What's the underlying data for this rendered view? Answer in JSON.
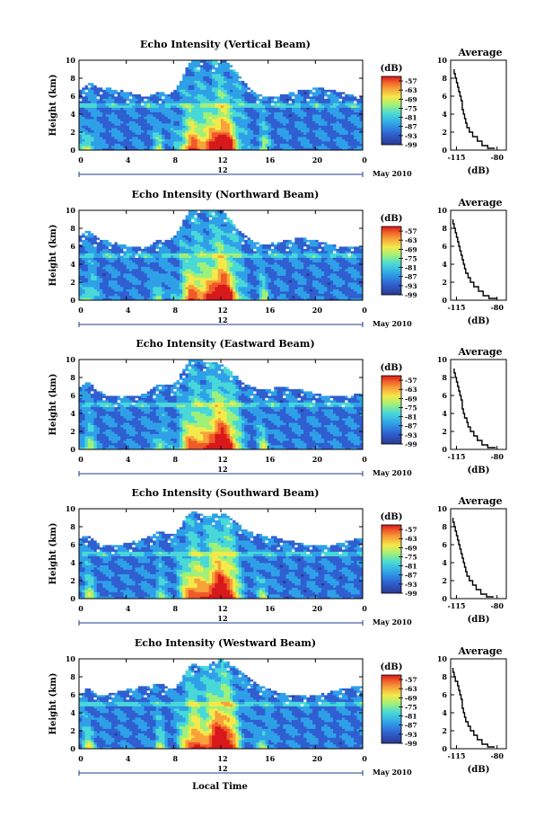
{
  "chart_data": {
    "type": "heatmap",
    "figure_xlabel": "Local Time",
    "date_label": "May 2010",
    "day_marker_label": "12",
    "panels": [
      {
        "title": "Echo Intensity (Vertical Beam)",
        "ylabel": "Height (km)",
        "x_ticks": [
          "0",
          "4",
          "8",
          "12",
          "16",
          "20",
          "0"
        ],
        "y_ticks": [
          "0",
          "2",
          "4",
          "6",
          "8",
          "10"
        ],
        "xlim": [
          0,
          24
        ],
        "ylim": [
          0,
          10
        ],
        "colorbar": {
          "label": "(dB)",
          "ticks": [
            "-57",
            "-63",
            "-69",
            "-75",
            "-81",
            "-87",
            "-93",
            "-99"
          ],
          "range": [
            -99,
            -54
          ]
        },
        "average": {
          "title": "Average",
          "x_ticks": [
            "-115",
            "-80"
          ],
          "xlabel": "(dB)",
          "y_ticks": [
            "0",
            "2",
            "4",
            "6",
            "8",
            "10"
          ],
          "xlim": [
            -120,
            -72
          ],
          "ylim": [
            0,
            10
          ],
          "profile": {
            "height": [
              0.2,
              0.5,
              1,
              1.5,
              2,
              2.5,
              3,
              3.5,
              4,
              4.5,
              5,
              5.5,
              6,
              6.5,
              7,
              7.5,
              8,
              8.5,
              9
            ],
            "db": [
              -82,
              -88,
              -93,
              -97,
              -101,
              -104,
              -106,
              -107,
              -108,
              -109,
              -110,
              -110,
              -111,
              -112,
              -113,
              -114,
              -115,
              -116,
              -117
            ]
          }
        }
      },
      {
        "title": "Echo Intensity (Northward Beam)",
        "ylabel": "Height (km)",
        "x_ticks": [
          "0",
          "4",
          "8",
          "12",
          "16",
          "20",
          "0"
        ],
        "y_ticks": [
          "0",
          "2",
          "4",
          "6",
          "8",
          "10"
        ],
        "xlim": [
          0,
          24
        ],
        "ylim": [
          0,
          10
        ],
        "colorbar": {
          "label": "(dB)",
          "ticks": [
            "-57",
            "-63",
            "-69",
            "-75",
            "-81",
            "-87",
            "-93",
            "-99"
          ],
          "range": [
            -99,
            -54
          ]
        },
        "average": {
          "title": "Average",
          "x_ticks": [
            "-115",
            "-80"
          ],
          "xlabel": "(dB)",
          "y_ticks": [
            "0",
            "2",
            "4",
            "6",
            "8",
            "10"
          ],
          "xlim": [
            -120,
            -72
          ],
          "ylim": [
            0,
            10
          ],
          "profile": {
            "height": [
              0.2,
              0.5,
              1,
              1.5,
              2,
              2.5,
              3,
              3.5,
              4,
              4.5,
              5,
              5.5,
              6,
              6.5,
              7,
              7.5,
              8,
              8.5,
              9
            ],
            "db": [
              -80,
              -87,
              -92,
              -96,
              -100,
              -103,
              -105,
              -107,
              -108,
              -109,
              -110,
              -111,
              -112,
              -113,
              -114,
              -115,
              -116,
              -117,
              -118
            ]
          }
        }
      },
      {
        "title": "Echo Intensity (Eastward Beam)",
        "ylabel": "Height (km)",
        "x_ticks": [
          "0",
          "4",
          "8",
          "12",
          "16",
          "20",
          "0"
        ],
        "y_ticks": [
          "0",
          "2",
          "4",
          "6",
          "8",
          "10"
        ],
        "xlim": [
          0,
          24
        ],
        "ylim": [
          0,
          10
        ],
        "colorbar": {
          "label": "(dB)",
          "ticks": [
            "-57",
            "-63",
            "-69",
            "-75",
            "-81",
            "-87",
            "-93",
            "-99"
          ],
          "range": [
            -99,
            -54
          ]
        },
        "average": {
          "title": "Average",
          "x_ticks": [
            "-115",
            "-80"
          ],
          "xlabel": "(dB)",
          "y_ticks": [
            "0",
            "2",
            "4",
            "6",
            "8",
            "10"
          ],
          "xlim": [
            -120,
            -72
          ],
          "ylim": [
            0,
            10
          ],
          "profile": {
            "height": [
              0.2,
              0.5,
              1,
              1.5,
              2,
              2.5,
              3,
              3.5,
              4,
              4.5,
              5,
              5.5,
              6,
              6.5,
              7,
              7.5,
              8,
              8.5,
              9
            ],
            "db": [
              -81,
              -88,
              -93,
              -97,
              -100,
              -103,
              -105,
              -106,
              -108,
              -109,
              -110,
              -110,
              -111,
              -112,
              -113,
              -114,
              -115,
              -116,
              -117
            ]
          }
        }
      },
      {
        "title": "Echo Intensity (Southward Beam)",
        "ylabel": "Height (km)",
        "x_ticks": [
          "0",
          "4",
          "8",
          "12",
          "16",
          "20",
          "0"
        ],
        "y_ticks": [
          "0",
          "2",
          "4",
          "6",
          "8",
          "10"
        ],
        "xlim": [
          0,
          24
        ],
        "ylim": [
          0,
          10
        ],
        "colorbar": {
          "label": "(dB)",
          "ticks": [
            "-57",
            "-63",
            "-69",
            "-75",
            "-81",
            "-87",
            "-93",
            "-99"
          ],
          "range": [
            -99,
            -54
          ]
        },
        "average": {
          "title": "Average",
          "x_ticks": [
            "-115",
            "-80"
          ],
          "xlabel": "(dB)",
          "y_ticks": [
            "0",
            "2",
            "4",
            "6",
            "8",
            "10"
          ],
          "xlim": [
            -120,
            -72
          ],
          "ylim": [
            0,
            10
          ],
          "profile": {
            "height": [
              0.2,
              0.5,
              1,
              1.5,
              2,
              2.5,
              3,
              3.5,
              4,
              4.5,
              5,
              5.5,
              6,
              6.5,
              7,
              7.5,
              8,
              8.5,
              9
            ],
            "db": [
              -83,
              -89,
              -94,
              -98,
              -101,
              -104,
              -106,
              -107,
              -108,
              -109,
              -110,
              -111,
              -112,
              -113,
              -114,
              -115,
              -116,
              -117,
              -118
            ]
          }
        }
      },
      {
        "title": "Echo Intensity (Westward Beam)",
        "ylabel": "Height (km)",
        "x_ticks": [
          "0",
          "4",
          "8",
          "12",
          "16",
          "20",
          "0"
        ],
        "y_ticks": [
          "0",
          "2",
          "4",
          "6",
          "8",
          "10"
        ],
        "xlim": [
          0,
          24
        ],
        "ylim": [
          0,
          10
        ],
        "colorbar": {
          "label": "(dB)",
          "ticks": [
            "-57",
            "-63",
            "-69",
            "-75",
            "-81",
            "-87",
            "-93",
            "-99"
          ],
          "range": [
            -99,
            -54
          ]
        },
        "average": {
          "title": "Average",
          "x_ticks": [
            "-115",
            "-80"
          ],
          "xlabel": "(dB)",
          "y_ticks": [
            "0",
            "2",
            "4",
            "6",
            "8",
            "10"
          ],
          "xlim": [
            -120,
            -72
          ],
          "ylim": [
            0,
            10
          ],
          "profile": {
            "height": [
              0.2,
              0.5,
              1,
              1.5,
              2,
              2.5,
              3,
              3.5,
              4,
              4.5,
              5,
              5.5,
              6,
              6.5,
              7,
              7.5,
              8,
              8.5,
              9
            ],
            "db": [
              -82,
              -88,
              -93,
              -97,
              -100,
              -103,
              -105,
              -107,
              -108,
              -109,
              -110,
              -110,
              -111,
              -112,
              -113,
              -114,
              -116,
              -117,
              -118
            ]
          }
        }
      }
    ],
    "colormap": [
      "#2b3a8f",
      "#2f5fd0",
      "#2fa0e8",
      "#48d8d8",
      "#9ef07a",
      "#f5e94a",
      "#f7a23a",
      "#f05a28",
      "#d7191c"
    ],
    "background_color": "#3a3f9a"
  }
}
